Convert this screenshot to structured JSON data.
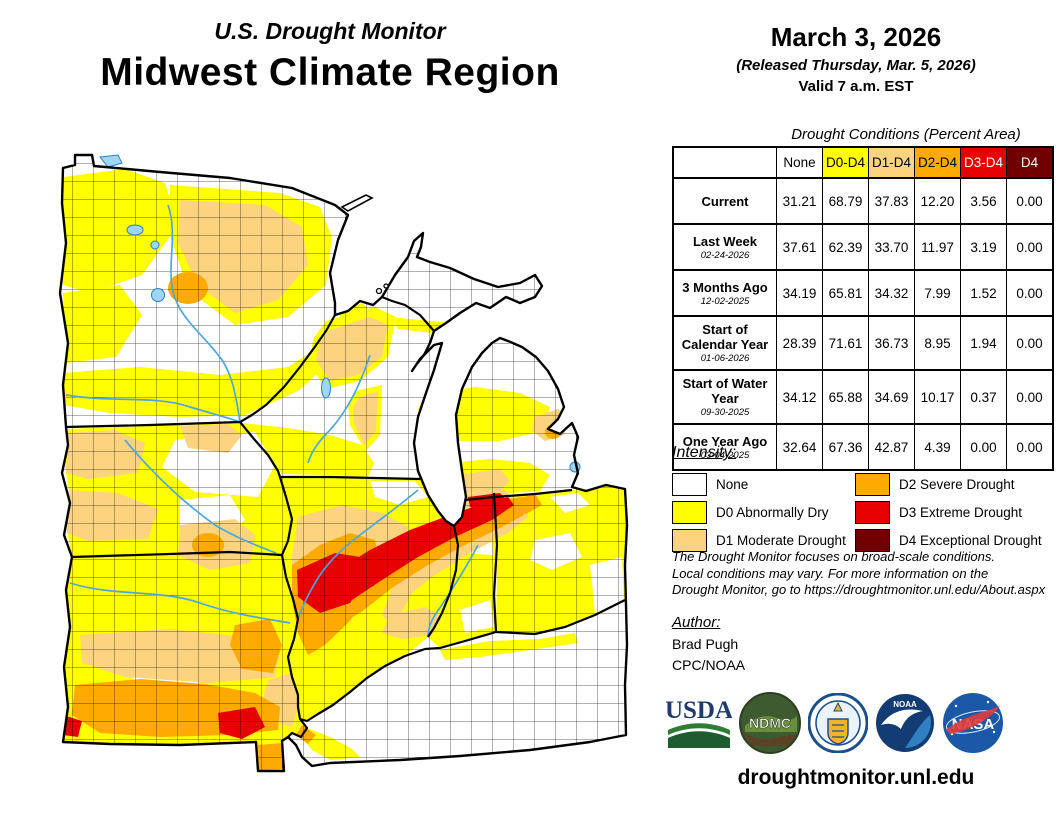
{
  "page": {
    "title_small": "U.S. Drought Monitor",
    "title_large": "Midwest Climate Region"
  },
  "release": {
    "date": "March 3, 2026",
    "released": "(Released Thursday, Mar. 5, 2026)",
    "valid": "Valid 7 a.m. EST"
  },
  "table": {
    "title": "Drought Conditions (Percent Area)",
    "columns": [
      {
        "label": "None",
        "bg": "#FFFFFF",
        "fg": "#000000"
      },
      {
        "label": "D0-D4",
        "bg": "#FFFF00",
        "fg": "#000000"
      },
      {
        "label": "D1-D4",
        "bg": "#FCD37F",
        "fg": "#000000"
      },
      {
        "label": "D2-D4",
        "bg": "#FFAA00",
        "fg": "#000000"
      },
      {
        "label": "D3-D4",
        "bg": "#E60000",
        "fg": "#FFFFFF"
      },
      {
        "label": "D4",
        "bg": "#730000",
        "fg": "#FFFFFF"
      }
    ],
    "rows": [
      {
        "label": "Current",
        "date": "",
        "values": [
          "31.21",
          "68.79",
          "37.83",
          "12.20",
          "3.56",
          "0.00"
        ]
      },
      {
        "label": "Last Week",
        "date": "02-24-2026",
        "values": [
          "37.61",
          "62.39",
          "33.70",
          "11.97",
          "3.19",
          "0.00"
        ]
      },
      {
        "label": "3 Months Ago",
        "date": "12-02-2025",
        "values": [
          "34.19",
          "65.81",
          "34.32",
          "7.99",
          "1.52",
          "0.00"
        ]
      },
      {
        "label": "Start of Calendar Year",
        "date": "01-06-2026",
        "values": [
          "28.39",
          "71.61",
          "36.73",
          "8.95",
          "1.94",
          "0.00"
        ]
      },
      {
        "label": "Start of Water Year",
        "date": "09-30-2025",
        "values": [
          "34.12",
          "65.88",
          "34.69",
          "10.17",
          "0.37",
          "0.00"
        ]
      },
      {
        "label": "One Year Ago",
        "date": "03-04-2025",
        "values": [
          "32.64",
          "67.36",
          "42.87",
          "4.39",
          "0.00",
          "0.00"
        ]
      }
    ]
  },
  "legend": {
    "title": "Intensity:",
    "items": [
      {
        "code": "none",
        "label": "None",
        "color": "#FFFFFF"
      },
      {
        "code": "d0",
        "label": "D0 Abnormally Dry",
        "color": "#FFFF00"
      },
      {
        "code": "d1",
        "label": "D1 Moderate Drought",
        "color": "#FCD37F"
      },
      {
        "code": "d2",
        "label": "D2 Severe Drought",
        "color": "#FFAA00"
      },
      {
        "code": "d3",
        "label": "D3 Extreme Drought",
        "color": "#E60000"
      },
      {
        "code": "d4",
        "label": "D4 Exceptional Drought",
        "color": "#730000"
      }
    ]
  },
  "disclaimer": "The Drought Monitor focuses on broad-scale conditions.\nLocal conditions may vary. For more information on the\nDrought Monitor, go to https://droughtmonitor.unl.edu/About.aspx",
  "author": {
    "title": "Author:",
    "name": "Brad Pugh",
    "org": "CPC/NOAA"
  },
  "footer": {
    "url": "droughtmonitor.unl.edu"
  },
  "logos": {
    "usda": "USDA",
    "ndmc": "NDMC",
    "noaa": "NOAA",
    "nasa": "NASA"
  },
  "palette": {
    "none": "#FFFFFF",
    "d0": "#FFFF00",
    "d1": "#FCD37F",
    "d2": "#FFAA00",
    "d3": "#E60000",
    "d4": "#730000",
    "water": "#9ED7F5",
    "river": "#4DA6E0",
    "border": "#000000"
  }
}
